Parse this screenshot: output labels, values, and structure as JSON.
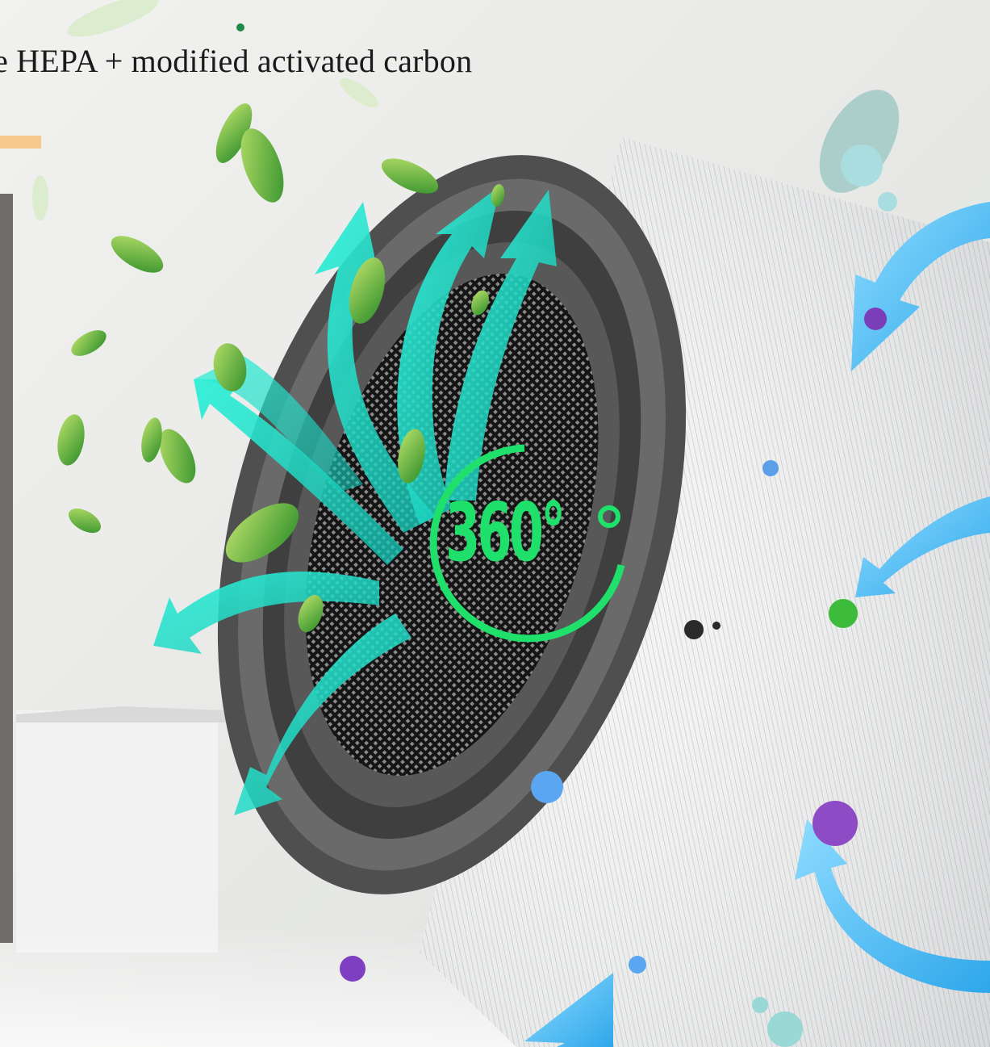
{
  "headline": "e HEPA + modified activated carbon",
  "badge": {
    "text": "360°"
  },
  "colors": {
    "accent_bar": "#f7c98a",
    "side_panel": "#6f6b68",
    "badge_green": "#1fe06a",
    "airflow_teal": "#1ee0c8",
    "intake_blue": "#3fb8ee",
    "leaf_green": "#4cae2e",
    "filter_ring": "#5b5b5b"
  }
}
